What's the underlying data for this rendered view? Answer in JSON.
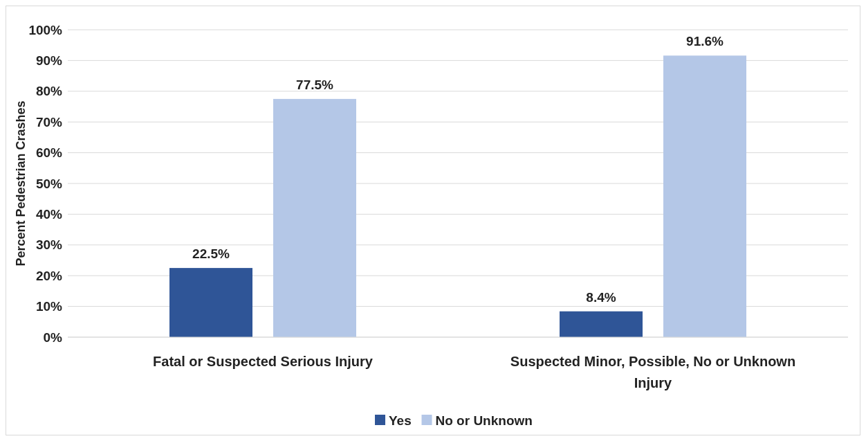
{
  "chart_data": {
    "type": "bar",
    "ylabel": "Percent Pedestrian Crashes",
    "categories": [
      "Fatal or Suspected Serious Injury",
      "Suspected Minor, Possible, No or Unknown Injury"
    ],
    "series": [
      {
        "name": "Yes",
        "color": "#2f5597",
        "values": [
          22.5,
          8.4
        ],
        "value_labels": [
          "22.5%",
          "8.4%"
        ]
      },
      {
        "name": "No or Unknown",
        "color": "#b4c7e7",
        "values": [
          77.5,
          91.6
        ],
        "value_labels": [
          "77.5%",
          "91.6%"
        ]
      }
    ],
    "ylim": [
      0,
      100
    ],
    "yticks": [
      {
        "value": 0,
        "label": "0%"
      },
      {
        "value": 10,
        "label": "10%"
      },
      {
        "value": 20,
        "label": "20%"
      },
      {
        "value": 30,
        "label": "30%"
      },
      {
        "value": 40,
        "label": "40%"
      },
      {
        "value": 50,
        "label": "50%"
      },
      {
        "value": 60,
        "label": "60%"
      },
      {
        "value": 70,
        "label": "70%"
      },
      {
        "value": 80,
        "label": "80%"
      },
      {
        "value": 90,
        "label": "90%"
      },
      {
        "value": 100,
        "label": "100%"
      }
    ],
    "grid": "y",
    "legend": "bottom"
  }
}
